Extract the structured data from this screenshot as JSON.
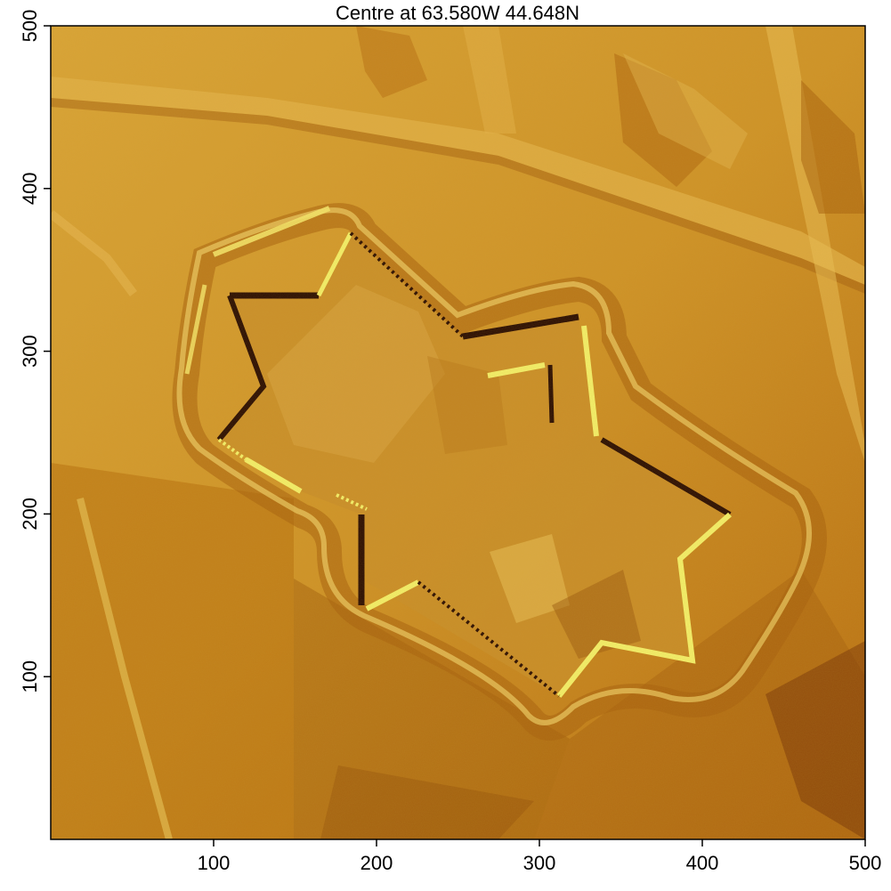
{
  "plot": {
    "title": "Centre at 63.580W 44.648N",
    "x_axis": {
      "range": [
        0,
        500
      ],
      "ticks": [
        100,
        200,
        300,
        400,
        500
      ],
      "tick_labels": [
        "100",
        "200",
        "300",
        "400",
        "500"
      ]
    },
    "y_axis": {
      "range": [
        0,
        500
      ],
      "ticks": [
        100,
        200,
        300,
        400,
        500
      ],
      "tick_labels": [
        "100",
        "200",
        "300",
        "400",
        "500"
      ]
    },
    "colors": {
      "low": "#3a1405",
      "mid": "#c98b1e",
      "high": "#f4f56a",
      "base": "#d59a2c"
    }
  }
}
